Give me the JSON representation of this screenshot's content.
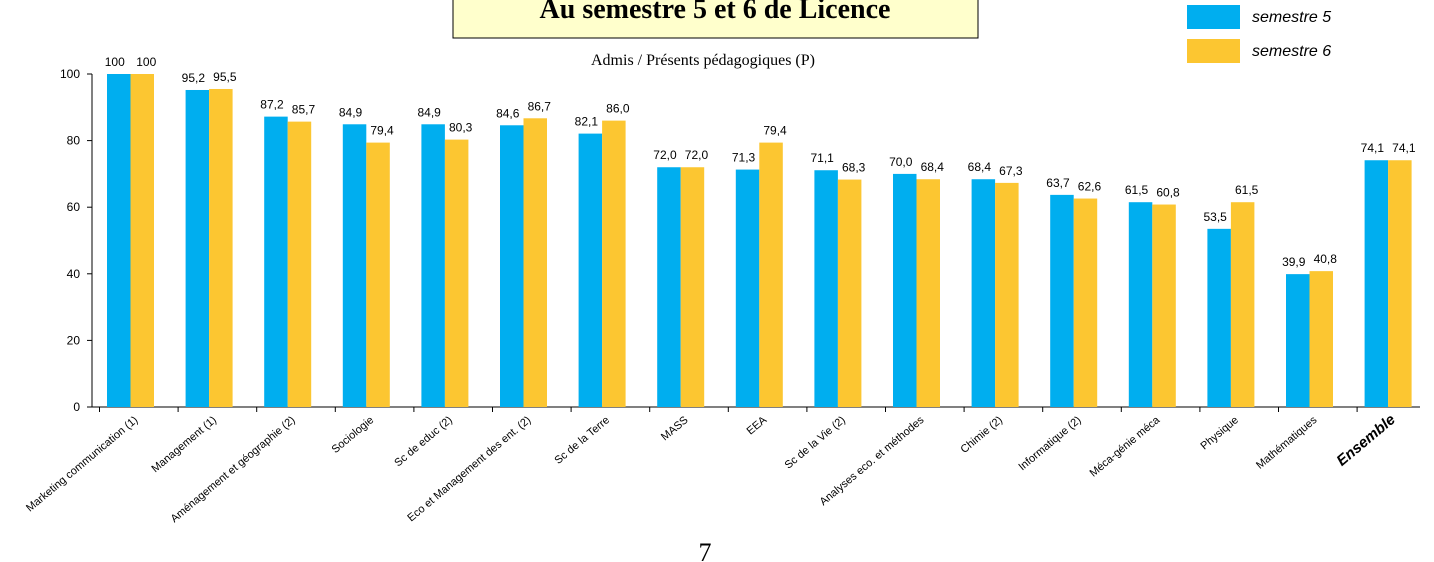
{
  "chart_data": {
    "type": "bar",
    "title": "Au semestre 5 et 6 de Licence",
    "subtitle": "Admis / Présents pédagogiques (P)",
    "categories": [
      "Marketing communication (1)",
      "Management (1)",
      "Aménagement et géographie (2)",
      "Sociologie",
      "Sc de educ (2)",
      "Eco et Management des ent. (2)",
      "Sc de la Terre",
      "MASS",
      "EEA",
      "Sc de la Vie (2)",
      "Analyses eco. et méthodes",
      "Chimie (2)",
      "Informatique (2)",
      "Méca-génie méca",
      "Physique",
      "Mathématiques",
      "Ensemble"
    ],
    "series": [
      {
        "name": "semestre 5",
        "color": "#00aeef",
        "values": [
          100,
          95.2,
          87.2,
          84.9,
          84.9,
          84.6,
          82.1,
          72.0,
          71.3,
          71.1,
          70.0,
          68.4,
          63.7,
          61.5,
          53.5,
          39.9,
          74.1
        ],
        "value_labels": [
          "100",
          "95,2",
          "87,2",
          "84,9",
          "84,9",
          "84,6",
          "82,1",
          "72,0",
          "71,3",
          "71,1",
          "70,0",
          "68,4",
          "63,7",
          "61,5",
          "53,5",
          "39,9",
          "74,1"
        ]
      },
      {
        "name": "semestre 6",
        "color": "#fcc631",
        "values": [
          100,
          95.5,
          85.7,
          79.4,
          80.3,
          86.7,
          86.0,
          72.0,
          79.4,
          68.3,
          68.4,
          67.3,
          62.6,
          60.8,
          61.5,
          40.8,
          74.1
        ],
        "value_labels": [
          "100",
          "95,5",
          "85,7",
          "79,4",
          "80,3",
          "86,7",
          "86,0",
          "72,0",
          "79,4",
          "68,3",
          "68,4",
          "67,3",
          "62,6",
          "60,8",
          "61,5",
          "40,8",
          "74,1"
        ]
      }
    ],
    "ylim": [
      0,
      100
    ],
    "yticks": [
      0,
      20,
      40,
      60,
      80,
      100
    ],
    "legend": "top-right",
    "page_number": "7"
  }
}
